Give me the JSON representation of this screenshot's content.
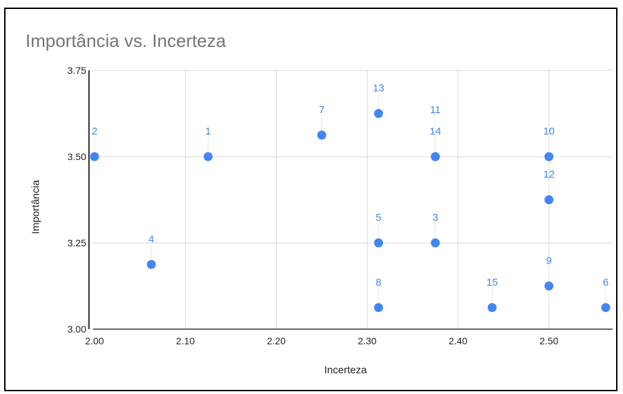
{
  "chart_data": {
    "type": "scatter",
    "title": "Importância vs. Incerteza",
    "xlabel": "Incerteza",
    "ylabel": "Importância",
    "xlim": [
      2.0,
      2.5625
    ],
    "ylim": [
      3.0,
      3.75
    ],
    "xticks": [
      "2.00",
      "2.10",
      "2.20",
      "2.30",
      "2.40",
      "2.50"
    ],
    "yticks": [
      "3.00",
      "3.25",
      "3.50",
      "3.75"
    ],
    "grid": true,
    "point_color": "#4285f4",
    "points": [
      {
        "label": "1",
        "x": 2.125,
        "y": 3.5
      },
      {
        "label": "2",
        "x": 2.0,
        "y": 3.5
      },
      {
        "label": "3",
        "x": 2.375,
        "y": 3.25
      },
      {
        "label": "4",
        "x": 2.0625,
        "y": 3.1875
      },
      {
        "label": "5",
        "x": 2.3125,
        "y": 3.25
      },
      {
        "label": "6",
        "x": 2.5625,
        "y": 3.0625
      },
      {
        "label": "7",
        "x": 2.25,
        "y": 3.5625
      },
      {
        "label": "8",
        "x": 2.3125,
        "y": 3.0625
      },
      {
        "label": "9",
        "x": 2.5,
        "y": 3.125
      },
      {
        "label": "10",
        "x": 2.5,
        "y": 3.5
      },
      {
        "label": "11",
        "x": 2.375,
        "y": 3.5
      },
      {
        "label": "12",
        "x": 2.5,
        "y": 3.375
      },
      {
        "label": "13",
        "x": 2.3125,
        "y": 3.625
      },
      {
        "label": "14",
        "x": 2.375,
        "y": 3.5
      },
      {
        "label": "15",
        "x": 2.4375,
        "y": 3.0625
      }
    ]
  }
}
